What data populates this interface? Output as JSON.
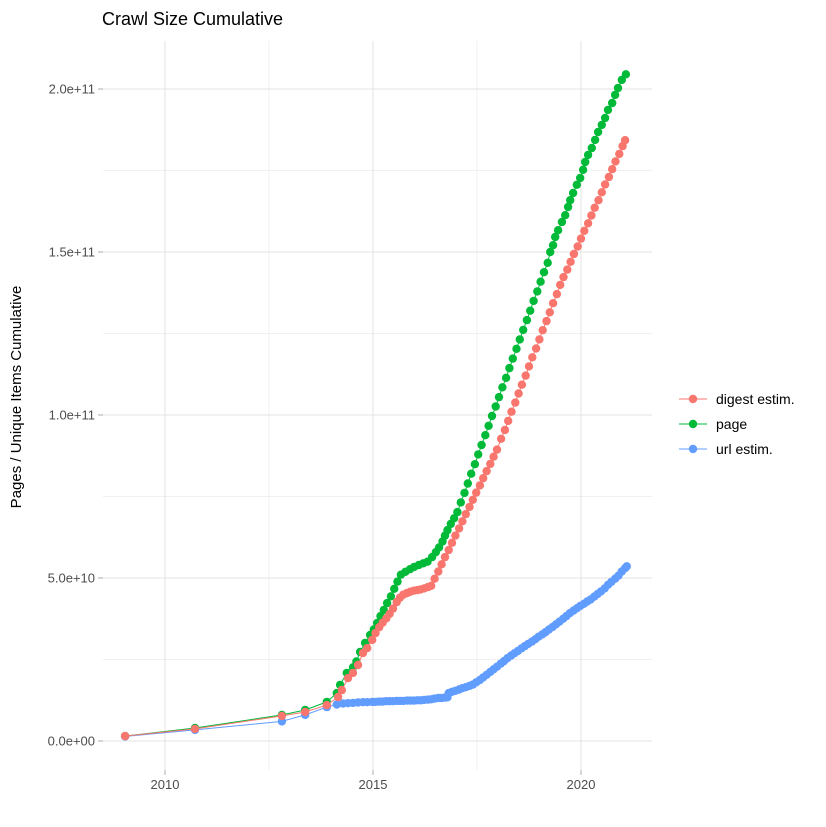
{
  "chart_data": {
    "type": "scatter",
    "title": "Crawl Size Cumulative",
    "xlabel": "",
    "ylabel": "Pages / Unique Items Cumulative",
    "value_unit": "billions (1e9)",
    "xlim": [
      2008.44,
      2021.7
    ],
    "ylim_billions": [
      -8.8,
      214.7
    ],
    "grid": true,
    "legend_position": "right",
    "x_ticks": [
      {
        "value": 2010,
        "label": "2010"
      },
      {
        "value": 2015,
        "label": "2015"
      },
      {
        "value": 2020,
        "label": "2020"
      }
    ],
    "x_minor_ticks": [
      2012.5,
      2017.5
    ],
    "y_ticks": [
      {
        "value": 0,
        "label": "0.0e+00"
      },
      {
        "value": 50,
        "label": "5.0e+10"
      },
      {
        "value": 100,
        "label": "1.0e+11"
      },
      {
        "value": 150,
        "label": "1.5e+11"
      },
      {
        "value": 200,
        "label": "2.0e+11"
      }
    ],
    "y_minor_ticks": [
      25,
      75,
      125,
      175
    ],
    "draw_order": [
      1,
      2,
      0
    ],
    "series": [
      {
        "name": "digest estim.",
        "color": "#F8766D",
        "points": [
          [
            2009.04,
            1.5
          ],
          [
            2010.72,
            3.7
          ],
          [
            2012.81,
            7.7
          ],
          [
            2013.37,
            8.9
          ],
          [
            2013.89,
            11
          ],
          [
            2014.16,
            13.5
          ],
          [
            2014.25,
            15.6
          ],
          [
            2014.4,
            19.3
          ],
          [
            2014.52,
            20.9
          ],
          [
            2014.64,
            23.3
          ],
          [
            2014.76,
            27
          ],
          [
            2014.86,
            28.5
          ],
          [
            2014.98,
            31
          ],
          [
            2015.06,
            33.1
          ],
          [
            2015.15,
            34.9
          ],
          [
            2015.23,
            36.3
          ],
          [
            2015.32,
            37.6
          ],
          [
            2015.4,
            39
          ],
          [
            2015.48,
            40.6
          ],
          [
            2015.57,
            42.6
          ],
          [
            2015.65,
            44
          ],
          [
            2015.73,
            44.9
          ],
          [
            2015.82,
            45.4
          ],
          [
            2015.9,
            45.8
          ],
          [
            2015.98,
            46.1
          ],
          [
            2016.07,
            46.3
          ],
          [
            2016.15,
            46.5
          ],
          [
            2016.23,
            46.8
          ],
          [
            2016.32,
            47.2
          ],
          [
            2016.4,
            47.6
          ],
          [
            2016.48,
            49.8
          ],
          [
            2016.57,
            52
          ],
          [
            2016.65,
            54.2
          ],
          [
            2016.73,
            56.4
          ],
          [
            2016.82,
            58.6
          ],
          [
            2016.9,
            60.8
          ],
          [
            2016.98,
            63
          ],
          [
            2017.07,
            65.2
          ],
          [
            2017.15,
            67.4
          ],
          [
            2017.23,
            69.6
          ],
          [
            2017.32,
            71.8
          ],
          [
            2017.4,
            74
          ],
          [
            2017.48,
            76.2
          ],
          [
            2017.57,
            78.4
          ],
          [
            2017.65,
            80.6
          ],
          [
            2017.73,
            82.8
          ],
          [
            2017.82,
            85
          ],
          [
            2017.9,
            87.2
          ],
          [
            2017.98,
            89.4
          ],
          [
            2018.08,
            92.7
          ],
          [
            2018.17,
            95.4
          ],
          [
            2018.25,
            98.2
          ],
          [
            2018.33,
            101
          ],
          [
            2018.42,
            103.8
          ],
          [
            2018.5,
            106.6
          ],
          [
            2018.58,
            109.3
          ],
          [
            2018.67,
            112.1
          ],
          [
            2018.75,
            114.9
          ],
          [
            2018.83,
            117.7
          ],
          [
            2018.92,
            120.4
          ],
          [
            2019,
            123.2
          ],
          [
            2019.08,
            126
          ],
          [
            2019.17,
            128.8
          ],
          [
            2019.25,
            131.5
          ],
          [
            2019.33,
            134.3
          ],
          [
            2019.42,
            137.1
          ],
          [
            2019.5,
            139.9
          ],
          [
            2019.58,
            142.3
          ],
          [
            2019.67,
            144.6
          ],
          [
            2019.75,
            147
          ],
          [
            2019.83,
            149.4
          ],
          [
            2019.92,
            151.7
          ],
          [
            2020,
            154.1
          ],
          [
            2020.08,
            156.5
          ],
          [
            2020.17,
            158.8
          ],
          [
            2020.25,
            161.2
          ],
          [
            2020.33,
            163.6
          ],
          [
            2020.42,
            165.9
          ],
          [
            2020.5,
            168.3
          ],
          [
            2020.58,
            170.7
          ],
          [
            2020.67,
            173
          ],
          [
            2020.75,
            175.4
          ],
          [
            2020.83,
            177.8
          ],
          [
            2020.92,
            180.1
          ],
          [
            2021,
            182.5
          ],
          [
            2021.06,
            184.3
          ]
        ]
      },
      {
        "name": "page",
        "color": "#00BA38",
        "points": [
          [
            2009.04,
            1.5
          ],
          [
            2010.72,
            4
          ],
          [
            2012.81,
            8
          ],
          [
            2013.37,
            9.5
          ],
          [
            2013.89,
            12
          ],
          [
            2014.13,
            14.7
          ],
          [
            2014.21,
            17.2
          ],
          [
            2014.37,
            20.9
          ],
          [
            2014.52,
            22.6
          ],
          [
            2014.6,
            24.4
          ],
          [
            2014.69,
            27.3
          ],
          [
            2014.81,
            30.1
          ],
          [
            2014.93,
            32.5
          ],
          [
            2015.02,
            34.2
          ],
          [
            2015.1,
            36.2
          ],
          [
            2015.18,
            38.3
          ],
          [
            2015.26,
            40.2
          ],
          [
            2015.34,
            42.3
          ],
          [
            2015.43,
            44.4
          ],
          [
            2015.51,
            46.7
          ],
          [
            2015.59,
            48.9
          ],
          [
            2015.67,
            51
          ],
          [
            2015.78,
            51.9
          ],
          [
            2015.89,
            52.7
          ],
          [
            2015.99,
            53.4
          ],
          [
            2016.1,
            54
          ],
          [
            2016.21,
            54.5
          ],
          [
            2016.31,
            55
          ],
          [
            2016.42,
            56.4
          ],
          [
            2016.51,
            57.9
          ],
          [
            2016.59,
            59.4
          ],
          [
            2016.67,
            61.2
          ],
          [
            2016.73,
            63
          ],
          [
            2016.79,
            64.7
          ],
          [
            2016.87,
            66.6
          ],
          [
            2016.95,
            68.3
          ],
          [
            2017.03,
            70.2
          ],
          [
            2017.11,
            73.2
          ],
          [
            2017.2,
            76.1
          ],
          [
            2017.28,
            79
          ],
          [
            2017.36,
            82
          ],
          [
            2017.45,
            84.9
          ],
          [
            2017.53,
            87.9
          ],
          [
            2017.61,
            90.8
          ],
          [
            2017.7,
            93.8
          ],
          [
            2017.78,
            96.7
          ],
          [
            2017.86,
            99.7
          ],
          [
            2017.95,
            102.6
          ],
          [
            2018.03,
            105.5
          ],
          [
            2018.11,
            108.5
          ],
          [
            2018.2,
            111.4
          ],
          [
            2018.28,
            114.4
          ],
          [
            2018.36,
            117.3
          ],
          [
            2018.45,
            120.3
          ],
          [
            2018.53,
            123.2
          ],
          [
            2018.61,
            126.1
          ],
          [
            2018.7,
            129.1
          ],
          [
            2018.78,
            132
          ],
          [
            2018.86,
            135
          ],
          [
            2018.95,
            137.9
          ],
          [
            2019.03,
            140.9
          ],
          [
            2019.11,
            143.8
          ],
          [
            2019.2,
            146.7
          ],
          [
            2019.26,
            150
          ],
          [
            2019.33,
            152.1
          ],
          [
            2019.38,
            154.6
          ],
          [
            2019.45,
            156.7
          ],
          [
            2019.54,
            159.2
          ],
          [
            2019.62,
            161.3
          ],
          [
            2019.69,
            163.8
          ],
          [
            2019.74,
            165.9
          ],
          [
            2019.81,
            168.1
          ],
          [
            2019.9,
            170.6
          ],
          [
            2019.98,
            172.7
          ],
          [
            2020.05,
            175.2
          ],
          [
            2020.1,
            177.6
          ],
          [
            2020.17,
            179.8
          ],
          [
            2020.26,
            181.9
          ],
          [
            2020.34,
            184.4
          ],
          [
            2020.41,
            186.8
          ],
          [
            2020.5,
            189
          ],
          [
            2020.58,
            191.1
          ],
          [
            2020.65,
            193.6
          ],
          [
            2020.75,
            195.7
          ],
          [
            2020.82,
            198.2
          ],
          [
            2020.89,
            200.3
          ],
          [
            2020.98,
            202.8
          ],
          [
            2021.08,
            204.5
          ]
        ]
      },
      {
        "name": "url estim.",
        "color": "#619CFF",
        "points": [
          [
            2009.04,
            1.4
          ],
          [
            2010.72,
            3.4
          ],
          [
            2012.81,
            6
          ],
          [
            2013.37,
            8
          ],
          [
            2013.89,
            10.4
          ],
          [
            2014.13,
            11.2
          ],
          [
            2014.28,
            11.5
          ],
          [
            2014.4,
            11.6
          ],
          [
            2014.52,
            11.7
          ],
          [
            2014.64,
            11.8
          ],
          [
            2014.76,
            11.9
          ],
          [
            2014.86,
            11.9
          ],
          [
            2014.98,
            12
          ],
          [
            2015.06,
            12
          ],
          [
            2015.15,
            12.1
          ],
          [
            2015.23,
            12.1
          ],
          [
            2015.32,
            12.2
          ],
          [
            2015.4,
            12.2
          ],
          [
            2015.48,
            12.2
          ],
          [
            2015.57,
            12.3
          ],
          [
            2015.65,
            12.3
          ],
          [
            2015.73,
            12.3
          ],
          [
            2015.82,
            12.4
          ],
          [
            2015.9,
            12.4
          ],
          [
            2015.98,
            12.4
          ],
          [
            2016.07,
            12.5
          ],
          [
            2016.15,
            12.5
          ],
          [
            2016.23,
            12.6
          ],
          [
            2016.32,
            12.7
          ],
          [
            2016.4,
            12.8
          ],
          [
            2016.48,
            13
          ],
          [
            2016.57,
            13.2
          ],
          [
            2016.65,
            13.2
          ],
          [
            2016.73,
            13.3
          ],
          [
            2016.79,
            13.4
          ],
          [
            2016.82,
            14.7
          ],
          [
            2016.9,
            15.1
          ],
          [
            2016.98,
            15.4
          ],
          [
            2017.07,
            15.8
          ],
          [
            2017.15,
            16.2
          ],
          [
            2017.23,
            16.5
          ],
          [
            2017.32,
            16.9
          ],
          [
            2017.4,
            17.3
          ],
          [
            2017.48,
            18
          ],
          [
            2017.57,
            18.7
          ],
          [
            2017.65,
            19.5
          ],
          [
            2017.73,
            20.3
          ],
          [
            2017.82,
            21.2
          ],
          [
            2017.9,
            22
          ],
          [
            2017.98,
            22.8
          ],
          [
            2018.07,
            23.7
          ],
          [
            2018.15,
            24.5
          ],
          [
            2018.23,
            25.4
          ],
          [
            2018.32,
            26.2
          ],
          [
            2018.4,
            26.9
          ],
          [
            2018.48,
            27.6
          ],
          [
            2018.57,
            28.4
          ],
          [
            2018.65,
            29.1
          ],
          [
            2018.73,
            29.8
          ],
          [
            2018.82,
            30.5
          ],
          [
            2018.9,
            31.2
          ],
          [
            2018.98,
            32
          ],
          [
            2019.07,
            32.7
          ],
          [
            2019.15,
            33.4
          ],
          [
            2019.23,
            34.2
          ],
          [
            2019.32,
            35
          ],
          [
            2019.4,
            35.8
          ],
          [
            2019.48,
            36.6
          ],
          [
            2019.57,
            37.5
          ],
          [
            2019.65,
            38.3
          ],
          [
            2019.73,
            39.2
          ],
          [
            2019.82,
            40
          ],
          [
            2019.9,
            40.7
          ],
          [
            2019.98,
            41.4
          ],
          [
            2020.07,
            42.1
          ],
          [
            2020.15,
            42.8
          ],
          [
            2020.23,
            43.4
          ],
          [
            2020.32,
            44.3
          ],
          [
            2020.4,
            45.1
          ],
          [
            2020.48,
            45.9
          ],
          [
            2020.57,
            46.8
          ],
          [
            2020.65,
            47.9
          ],
          [
            2020.73,
            48.8
          ],
          [
            2020.82,
            49.8
          ],
          [
            2020.9,
            50.7
          ],
          [
            2020.98,
            52
          ],
          [
            2021.06,
            53
          ],
          [
            2021.1,
            53.6
          ]
        ]
      }
    ]
  }
}
